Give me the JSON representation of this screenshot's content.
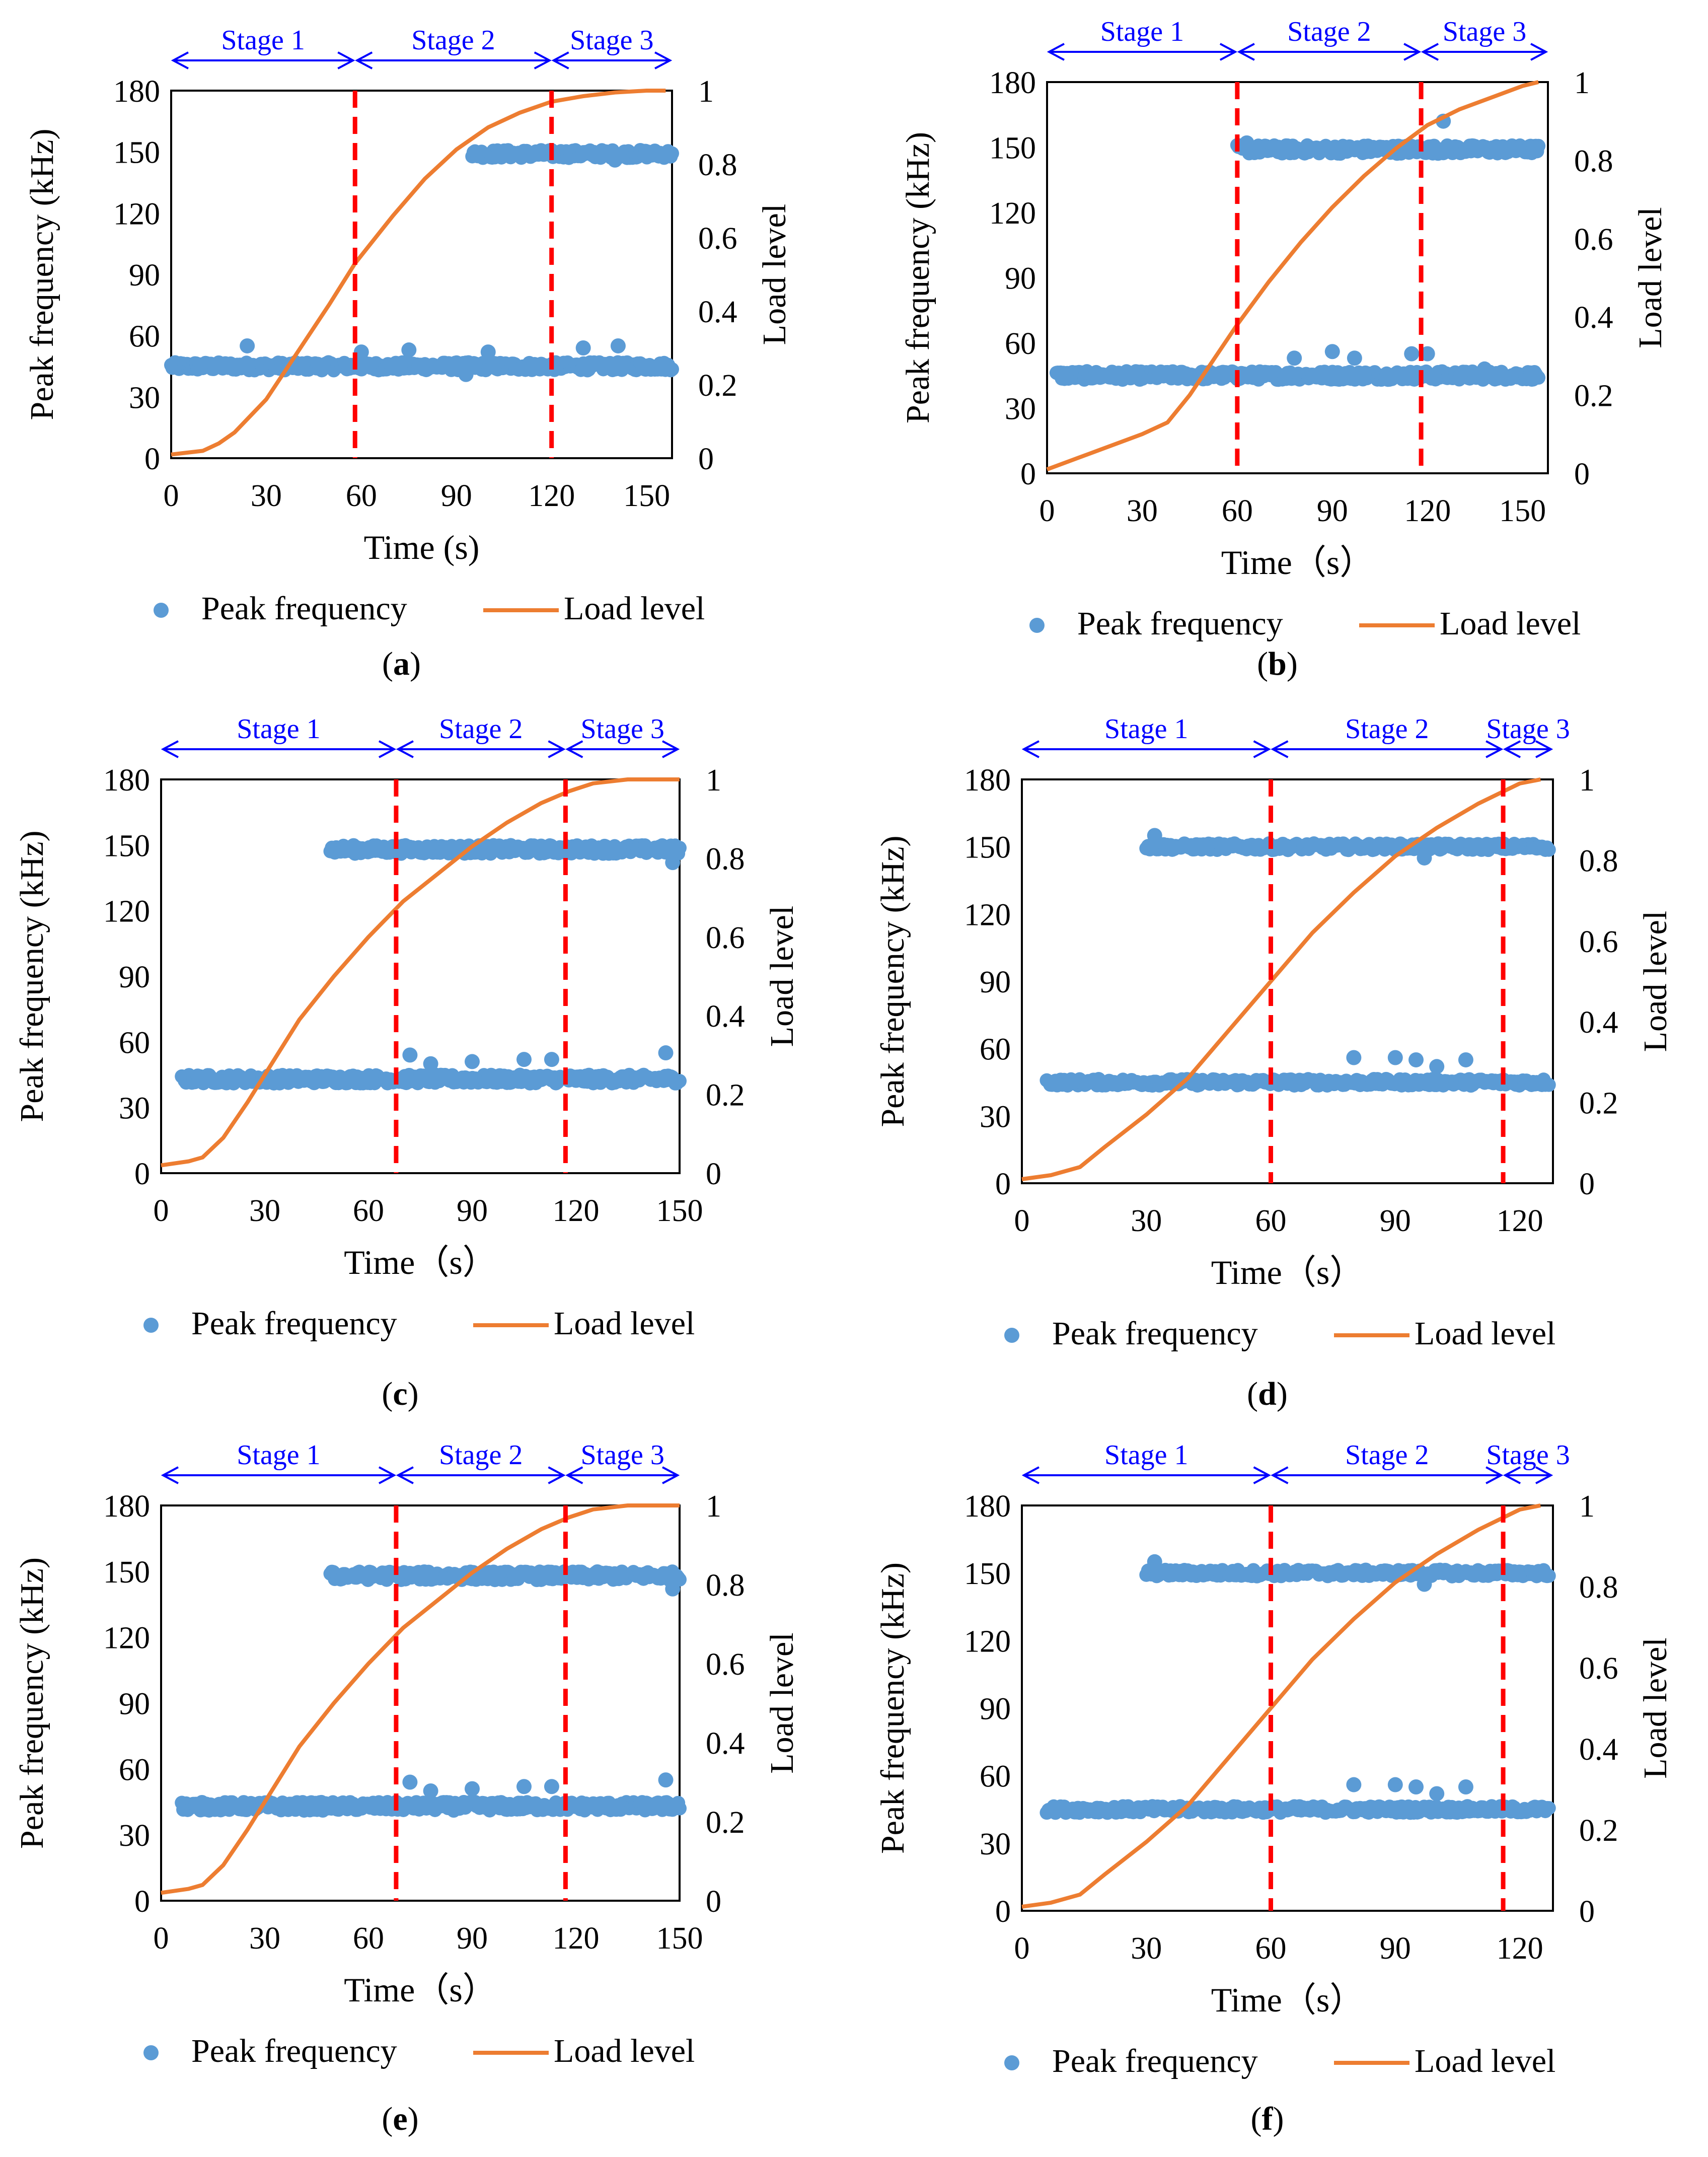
{
  "colors": {
    "peak": "#5b9bd5",
    "load": "#ed7d31",
    "stage_line": "#ff0000",
    "stage_arrow": "#0000ff",
    "axis": "#000000"
  },
  "chart_data": [
    {
      "panel_label": "a",
      "type": "scatter+line",
      "xlabel": "Time (s)",
      "ylabel_left": "Peak frequency (kHz)",
      "ylabel_right": "Load level",
      "xlim": [
        0,
        158
      ],
      "xticks": [
        0,
        30,
        60,
        90,
        120,
        150
      ],
      "ylim_left": [
        0,
        180
      ],
      "yticks_left": [
        0,
        30,
        60,
        90,
        120,
        150,
        180
      ],
      "ylim_right": [
        0,
        1
      ],
      "yticks_right": [
        0,
        0.2,
        0.4,
        0.6,
        0.8,
        1
      ],
      "stage_boundaries": [
        58,
        120
      ],
      "stages": [
        {
          "label": "Stage 1",
          "from": 0,
          "to": 58
        },
        {
          "label": "Stage 2",
          "from": 58,
          "to": 120
        },
        {
          "label": "Stage 3",
          "from": 120,
          "to": 158
        }
      ],
      "legend": [
        "Peak frequency",
        "Load level"
      ],
      "load_level": {
        "name": "Load level",
        "x": [
          0,
          5,
          10,
          15,
          20,
          30,
          40,
          50,
          58,
          70,
          80,
          90,
          100,
          110,
          120,
          130,
          140,
          150,
          156
        ],
        "y": [
          0.01,
          0.015,
          0.02,
          0.04,
          0.07,
          0.16,
          0.29,
          0.42,
          0.53,
          0.66,
          0.76,
          0.84,
          0.9,
          0.94,
          0.97,
          0.985,
          0.995,
          1.0,
          1.0
        ]
      },
      "peak_frequency": [
        {
          "name": "lower band",
          "x_range": [
            0,
            158
          ],
          "center": 45,
          "spread": 2,
          "outliers": [
            [
              24,
              55
            ],
            [
              60,
              52
            ],
            [
              75,
              53
            ],
            [
              100,
              52
            ],
            [
              130,
              54
            ],
            [
              141,
              55
            ],
            [
              93,
              41
            ]
          ]
        },
        {
          "name": "upper band",
          "x_range": [
            95,
            158
          ],
          "center": 149,
          "spread": 2,
          "outliers": [
            [
              120,
              150
            ],
            [
              140,
              146
            ]
          ]
        }
      ]
    },
    {
      "panel_label": "b",
      "type": "scatter+line",
      "xlabel": "Time（s）",
      "ylabel_left": "Peak frequency (kHz)",
      "ylabel_right": "Load level",
      "xlim": [
        0,
        158
      ],
      "xticks": [
        0,
        30,
        60,
        90,
        120,
        150
      ],
      "ylim_left": [
        0,
        180
      ],
      "yticks_left": [
        0,
        30,
        60,
        90,
        120,
        150,
        180
      ],
      "ylim_right": [
        0,
        1
      ],
      "yticks_right": [
        0,
        0.2,
        0.4,
        0.6,
        0.8,
        1
      ],
      "stage_boundaries": [
        60,
        118
      ],
      "stages": [
        {
          "label": "Stage 1",
          "from": 0,
          "to": 60
        },
        {
          "label": "Stage 2",
          "from": 60,
          "to": 118
        },
        {
          "label": "Stage 3",
          "from": 118,
          "to": 158
        }
      ],
      "legend": [
        "Peak frequency",
        "Load level"
      ],
      "load_level": {
        "name": "Load level",
        "x": [
          0,
          10,
          20,
          30,
          38,
          45,
          50,
          60,
          70,
          80,
          90,
          100,
          110,
          120,
          130,
          140,
          150,
          155
        ],
        "y": [
          0.01,
          0.04,
          0.07,
          0.1,
          0.13,
          0.2,
          0.26,
          0.38,
          0.49,
          0.59,
          0.68,
          0.76,
          0.83,
          0.89,
          0.93,
          0.96,
          0.99,
          1.0
        ]
      },
      "peak_frequency": [
        {
          "name": "lower band",
          "x_range": [
            3,
            155
          ],
          "center": 45,
          "spread": 2,
          "outliers": [
            [
              78,
              53
            ],
            [
              90,
              56
            ],
            [
              97,
              53
            ],
            [
              115,
              55
            ],
            [
              120,
              55
            ],
            [
              138,
              48
            ]
          ]
        },
        {
          "name": "upper band",
          "x_range": [
            60,
            155
          ],
          "center": 149,
          "spread": 2,
          "outliers": [
            [
              63,
              152
            ],
            [
              73,
              150
            ],
            [
              125,
              162
            ]
          ]
        }
      ]
    },
    {
      "panel_label": "c",
      "type": "scatter+line",
      "xlabel": "Time（s）",
      "ylabel_left": "Peak frequency (kHz)",
      "ylabel_right": "Load level",
      "xlim": [
        0,
        150
      ],
      "xticks": [
        0,
        30,
        60,
        90,
        120,
        150
      ],
      "ylim_left": [
        0,
        180
      ],
      "yticks_left": [
        0,
        30,
        60,
        90,
        120,
        150,
        180
      ],
      "ylim_right": [
        0,
        1
      ],
      "yticks_right": [
        0,
        0.2,
        0.4,
        0.6,
        0.8,
        1
      ],
      "stage_boundaries": [
        68,
        117
      ],
      "stages": [
        {
          "label": "Stage 1",
          "from": 0,
          "to": 68
        },
        {
          "label": "Stage 2",
          "from": 68,
          "to": 117
        },
        {
          "label": "Stage 3",
          "from": 117,
          "to": 150
        }
      ],
      "legend": [
        "Peak frequency",
        "Load level"
      ],
      "load_level": {
        "name": "Load level",
        "x": [
          0,
          8,
          12,
          18,
          25,
          30,
          40,
          50,
          60,
          70,
          80,
          90,
          100,
          110,
          118,
          125,
          135,
          145,
          150
        ],
        "y": [
          0.02,
          0.03,
          0.04,
          0.09,
          0.18,
          0.25,
          0.39,
          0.5,
          0.6,
          0.69,
          0.76,
          0.83,
          0.89,
          0.94,
          0.97,
          0.99,
          1.0,
          1.0,
          1.0
        ]
      },
      "peak_frequency": [
        {
          "name": "lower band",
          "x_range": [
            6,
            150
          ],
          "center": 43,
          "spread": 2,
          "outliers": [
            [
              72,
              54
            ],
            [
              78,
              50
            ],
            [
              90,
              51
            ],
            [
              105,
              52
            ],
            [
              113,
              52
            ],
            [
              146,
              55
            ]
          ]
        },
        {
          "name": "upper band",
          "x_range": [
            49,
            150
          ],
          "center": 148,
          "spread": 2,
          "outliers": [
            [
              148,
              142
            ]
          ]
        }
      ]
    },
    {
      "panel_label": "d",
      "type": "scatter+line",
      "xlabel": "Time（s）",
      "ylabel_left": "Peak frequency (kHz)",
      "ylabel_right": "Load level",
      "xlim": [
        0,
        128
      ],
      "xticks": [
        0,
        30,
        60,
        90,
        120
      ],
      "ylim_left": [
        0,
        180
      ],
      "yticks_left": [
        0,
        30,
        60,
        90,
        120,
        150,
        180
      ],
      "ylim_right": [
        0,
        1
      ],
      "yticks_right": [
        0,
        0.2,
        0.4,
        0.6,
        0.8,
        1
      ],
      "stage_boundaries": [
        60,
        116
      ],
      "stages": [
        {
          "label": "Stage 1",
          "from": 0,
          "to": 60
        },
        {
          "label": "Stage 2",
          "from": 60,
          "to": 116
        },
        {
          "label": "Stage 3",
          "from": 116,
          "to": 128
        }
      ],
      "legend": [
        "Peak frequency",
        "Load level"
      ],
      "load_level": {
        "name": "Load level",
        "x": [
          0,
          7,
          14,
          20,
          30,
          40,
          50,
          60,
          70,
          80,
          90,
          100,
          110,
          120,
          125
        ],
        "y": [
          0.01,
          0.02,
          0.04,
          0.09,
          0.17,
          0.26,
          0.38,
          0.5,
          0.62,
          0.72,
          0.81,
          0.88,
          0.94,
          0.99,
          1.0
        ]
      },
      "peak_frequency": [
        {
          "name": "lower band",
          "x_range": [
            6,
            127
          ],
          "center": 45,
          "spread": 1.5,
          "outliers": [
            [
              80,
              56
            ],
            [
              90,
              56
            ],
            [
              95,
              55
            ],
            [
              100,
              52
            ],
            [
              107,
              55
            ]
          ]
        },
        {
          "name": "upper band",
          "x_range": [
            30,
            127
          ],
          "center": 150,
          "spread": 1.5,
          "outliers": [
            [
              32,
              155
            ],
            [
              97,
              145
            ]
          ]
        }
      ]
    },
    {
      "panel_label": "e",
      "type": "scatter+line",
      "xlabel": "Time（s）",
      "ylabel_left": "Peak frequency (kHz)",
      "ylabel_right": "Load level",
      "xlim": [
        0,
        150
      ],
      "xticks": [
        0,
        30,
        60,
        90,
        120,
        150
      ],
      "ylim_left": [
        0,
        180
      ],
      "yticks_left": [
        0,
        30,
        60,
        90,
        120,
        150,
        180
      ],
      "ylim_right": [
        0,
        1
      ],
      "yticks_right": [
        0,
        0.2,
        0.4,
        0.6,
        0.8,
        1
      ],
      "stage_boundaries": [
        68,
        117
      ],
      "stages": [
        {
          "label": "Stage 1",
          "from": 0,
          "to": 68
        },
        {
          "label": "Stage 2",
          "from": 68,
          "to": 117
        },
        {
          "label": "Stage 3",
          "from": 117,
          "to": 150
        }
      ],
      "legend": [
        "Peak frequency",
        "Load level"
      ],
      "load_level": {
        "name": "Load level",
        "x": [
          0,
          8,
          12,
          18,
          25,
          30,
          40,
          50,
          60,
          70,
          80,
          90,
          100,
          110,
          118,
          125,
          135,
          145,
          150
        ],
        "y": [
          0.02,
          0.03,
          0.04,
          0.09,
          0.18,
          0.25,
          0.39,
          0.5,
          0.6,
          0.69,
          0.76,
          0.83,
          0.89,
          0.94,
          0.97,
          0.99,
          1.0,
          1.0,
          1.0
        ]
      },
      "peak_frequency": [
        {
          "name": "lower band",
          "x_range": [
            6,
            150
          ],
          "center": 43,
          "spread": 2,
          "outliers": [
            [
              72,
              54
            ],
            [
              78,
              50
            ],
            [
              90,
              51
            ],
            [
              105,
              52
            ],
            [
              113,
              52
            ],
            [
              146,
              55
            ]
          ]
        },
        {
          "name": "upper band",
          "x_range": [
            49,
            150
          ],
          "center": 148,
          "spread": 2,
          "outliers": [
            [
              148,
              142
            ]
          ]
        }
      ]
    },
    {
      "panel_label": "f",
      "type": "scatter+line",
      "xlabel": "Time（s）",
      "ylabel_left": "Peak frequency (kHz)",
      "ylabel_right": "Load level",
      "xlim": [
        0,
        128
      ],
      "xticks": [
        0,
        30,
        60,
        90,
        120
      ],
      "ylim_left": [
        0,
        180
      ],
      "yticks_left": [
        0,
        30,
        60,
        90,
        120,
        150,
        180
      ],
      "ylim_right": [
        0,
        1
      ],
      "yticks_right": [
        0,
        0.2,
        0.4,
        0.6,
        0.8,
        1
      ],
      "stage_boundaries": [
        60,
        116
      ],
      "stages": [
        {
          "label": "Stage 1",
          "from": 0,
          "to": 60
        },
        {
          "label": "Stage 2",
          "from": 60,
          "to": 116
        },
        {
          "label": "Stage 3",
          "from": 116,
          "to": 128
        }
      ],
      "legend": [
        "Peak frequency",
        "Load level"
      ],
      "load_level": {
        "name": "Load level",
        "x": [
          0,
          7,
          14,
          20,
          30,
          40,
          50,
          60,
          70,
          80,
          90,
          100,
          110,
          120,
          125
        ],
        "y": [
          0.01,
          0.02,
          0.04,
          0.09,
          0.17,
          0.26,
          0.38,
          0.5,
          0.62,
          0.72,
          0.81,
          0.88,
          0.94,
          0.99,
          1.0
        ]
      },
      "peak_frequency": [
        {
          "name": "lower band",
          "x_range": [
            6,
            127
          ],
          "center": 45,
          "spread": 1.5,
          "outliers": [
            [
              80,
              56
            ],
            [
              90,
              56
            ],
            [
              95,
              55
            ],
            [
              100,
              52
            ],
            [
              107,
              55
            ]
          ]
        },
        {
          "name": "upper band",
          "x_range": [
            30,
            127
          ],
          "center": 150,
          "spread": 1.5,
          "outliers": [
            [
              32,
              155
            ],
            [
              97,
              145
            ]
          ]
        }
      ]
    }
  ]
}
